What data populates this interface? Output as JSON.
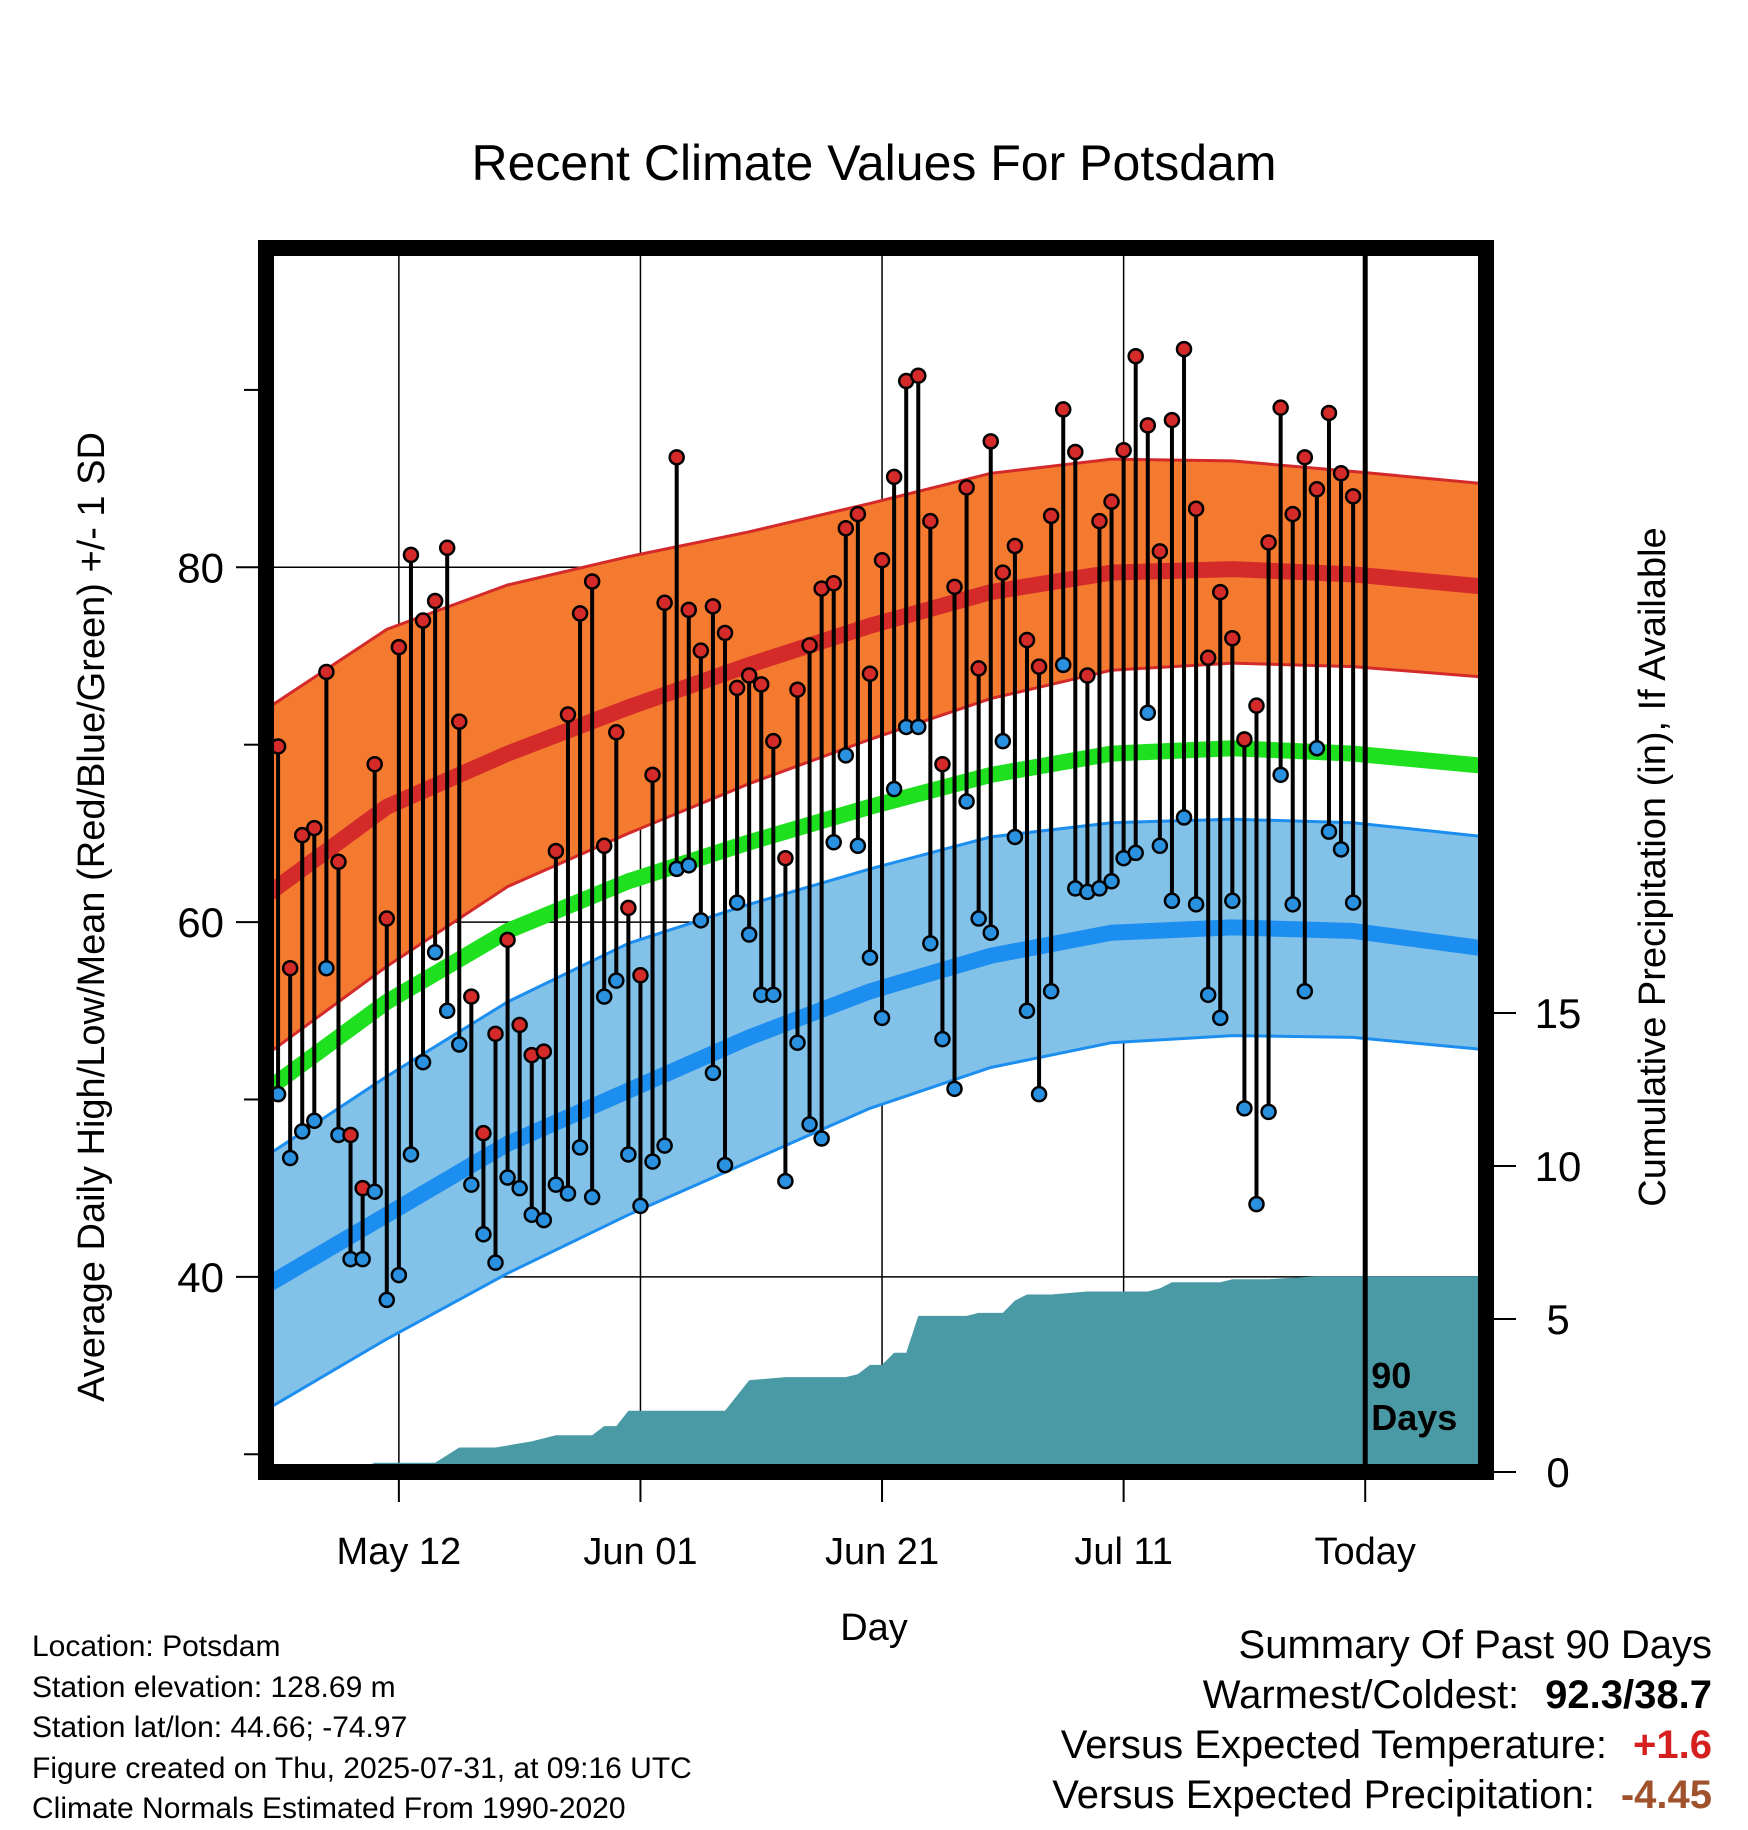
{
  "title": "Recent Climate Values For Potsdam",
  "chart_data": {
    "type": "line",
    "title": "Recent Climate Values For Potsdam",
    "xlabel": "Day",
    "ylabel_left": "Average Daily High/Low/Mean (Red/Blue/Green) +/- 1 SD",
    "ylabel_right": "Cumulative Precipitation (in), If Available",
    "ylim": [
      29,
      98
    ],
    "y_ticks": [
      40,
      60,
      80
    ],
    "precip_ylim": [
      0,
      40
    ],
    "precip_ticks": [
      0,
      5,
      10,
      15
    ],
    "x_ticks": [
      {
        "day": 11,
        "label": "May 12"
      },
      {
        "day": 31,
        "label": "Jun 01"
      },
      {
        "day": 51,
        "label": "Jun 21"
      },
      {
        "day": 71,
        "label": "Jul 11"
      },
      {
        "day": 91,
        "label": "Today"
      }
    ],
    "xlim": [
      0,
      101
    ],
    "today_label": [
      "90",
      "Days"
    ],
    "normals": {
      "day": [
        0,
        10,
        20,
        30,
        40,
        50,
        60,
        70,
        80,
        90,
        101
      ],
      "high_mean": [
        61.5,
        66.5,
        69.5,
        72.1,
        74.5,
        76.7,
        78.6,
        79.7,
        79.9,
        79.6,
        78.9
      ],
      "high_upper": [
        72.0,
        76.5,
        79.0,
        80.6,
        82.0,
        83.6,
        85.3,
        86.1,
        86.0,
        85.4,
        84.7
      ],
      "high_lower": [
        52.5,
        57.5,
        62.0,
        65.0,
        67.8,
        70.3,
        72.6,
        74.2,
        74.6,
        74.4,
        73.8
      ],
      "mean": [
        50.5,
        55.5,
        59.5,
        62.3,
        64.5,
        66.5,
        68.3,
        69.5,
        69.8,
        69.5,
        68.8
      ],
      "low_mean": [
        39.5,
        43.5,
        47.5,
        50.5,
        53.5,
        56.1,
        58.1,
        59.4,
        59.7,
        59.5,
        58.5
      ],
      "low_upper": [
        46.8,
        51.3,
        55.5,
        58.8,
        61.0,
        63.0,
        64.8,
        65.6,
        65.8,
        65.6,
        64.8
      ],
      "low_lower": [
        32.5,
        36.5,
        40.2,
        43.5,
        46.5,
        49.5,
        51.8,
        53.2,
        53.6,
        53.5,
        52.8
      ]
    },
    "daily": {
      "day": [
        1,
        2,
        3,
        4,
        5,
        6,
        7,
        8,
        9,
        10,
        11,
        12,
        13,
        14,
        15,
        16,
        17,
        18,
        19,
        20,
        21,
        22,
        23,
        24,
        25,
        26,
        27,
        28,
        29,
        30,
        31,
        32,
        33,
        34,
        35,
        36,
        37,
        38,
        39,
        40,
        41,
        42,
        43,
        44,
        45,
        46,
        47,
        48,
        49,
        50,
        51,
        52,
        53,
        54,
        55,
        56,
        57,
        58,
        59,
        60,
        61,
        62,
        63,
        64,
        65,
        66,
        67,
        68,
        69,
        70,
        71,
        72,
        73,
        74,
        75,
        76,
        77,
        78,
        79,
        80,
        81,
        82,
        83,
        84,
        85,
        86,
        87,
        88,
        89,
        90
      ],
      "high": [
        69.9,
        57.4,
        64.9,
        65.3,
        74.1,
        63.4,
        48.0,
        45.0,
        68.9,
        60.2,
        75.5,
        80.7,
        77.0,
        78.1,
        81.1,
        71.3,
        55.8,
        48.1,
        53.7,
        59.0,
        54.2,
        52.5,
        52.7,
        64.0,
        71.7,
        77.4,
        79.2,
        64.3,
        70.7,
        60.8,
        57.0,
        68.3,
        78.0,
        86.2,
        77.6,
        75.3,
        77.8,
        76.3,
        73.2,
        73.9,
        73.4,
        70.2,
        63.6,
        73.1,
        75.6,
        78.8,
        79.1,
        82.2,
        83.0,
        74.0,
        80.4,
        85.1,
        90.5,
        90.8,
        82.6,
        68.9,
        78.9,
        84.5,
        74.3,
        87.1,
        79.7,
        81.2,
        75.9,
        74.4,
        82.9,
        88.9,
        86.5,
        73.9,
        82.6,
        83.7,
        86.6,
        91.9,
        88.0,
        80.9,
        88.3,
        92.3,
        83.3,
        74.9,
        78.6,
        76.0,
        70.3,
        72.2,
        81.4,
        89.0,
        83.0,
        86.2,
        84.4,
        88.7,
        85.3,
        84.0
      ],
      "low": [
        50.3,
        46.7,
        48.2,
        48.8,
        57.4,
        48.0,
        41.0,
        41.0,
        44.8,
        38.7,
        40.1,
        46.9,
        52.1,
        58.3,
        55.0,
        53.1,
        45.2,
        42.4,
        40.8,
        45.6,
        45.0,
        43.5,
        43.2,
        45.2,
        44.7,
        47.3,
        44.5,
        55.8,
        56.7,
        46.9,
        44.0,
        46.5,
        47.4,
        63.0,
        63.2,
        60.1,
        51.5,
        46.3,
        61.1,
        59.3,
        55.9,
        55.9,
        45.4,
        53.2,
        48.6,
        47.8,
        64.5,
        69.4,
        64.3,
        58.0,
        54.6,
        67.5,
        71.0,
        71.0,
        58.8,
        53.4,
        50.6,
        66.8,
        60.2,
        59.4,
        70.2,
        64.8,
        55.0,
        50.3,
        56.1,
        74.5,
        61.9,
        61.7,
        61.9,
        62.3,
        63.6,
        63.9,
        71.8,
        64.3,
        61.2,
        65.9,
        61.0,
        55.9,
        54.6,
        61.2,
        49.5,
        44.1,
        49.3,
        68.3,
        61.0,
        56.1,
        69.8,
        65.1,
        64.1,
        61.1
      ]
    },
    "precip": {
      "day": [
        0,
        7,
        9,
        14,
        16,
        19,
        22,
        24,
        27,
        28,
        29,
        30,
        32,
        38,
        40,
        43,
        45,
        48,
        49,
        50,
        51,
        52,
        53,
        54,
        55,
        57,
        58,
        59,
        61,
        62,
        63,
        65,
        68,
        70,
        73,
        74,
        75,
        79,
        80,
        83,
        87,
        89,
        91,
        101
      ],
      "cum": [
        0.0,
        0.0,
        0.3,
        0.3,
        0.8,
        0.8,
        1.0,
        1.2,
        1.2,
        1.5,
        1.5,
        2.0,
        2.0,
        2.0,
        3.0,
        3.1,
        3.1,
        3.1,
        3.2,
        3.5,
        3.5,
        3.9,
        3.9,
        5.1,
        5.1,
        5.1,
        5.1,
        5.2,
        5.2,
        5.6,
        5.8,
        5.8,
        5.9,
        5.9,
        5.9,
        6.0,
        6.2,
        6.2,
        6.3,
        6.3,
        6.4,
        6.4,
        6.4,
        6.4
      ]
    }
  },
  "info": {
    "location": "Location: Potsdam",
    "elevation": "Station elevation: 128.69 m",
    "latlon": "Station lat/lon: 44.66; -74.97",
    "created": "Figure created on Thu, 2025-07-31, at 09:16 UTC",
    "normals": "Climate Normals Estimated From 1990-2020"
  },
  "summary": {
    "heading": "Summary Of Past 90 Days",
    "warm_cold_label": "Warmest/Coldest:",
    "warm_cold_value": "92.3/38.7",
    "temp_label": "Versus Expected Temperature:",
    "temp_value": "+1.6",
    "precip_label": "Versus Expected Precipitation:",
    "precip_value": "-4.45"
  },
  "colors": {
    "high_band": "#f47a30",
    "high_line": "#d42a2a",
    "mean_line": "#1fe01f",
    "low_band": "#82c1e8",
    "low_line": "#1c8ef0",
    "precip_fill": "#4a9aa5",
    "high_marker": "#d42a2a",
    "low_marker": "#2a90e0"
  }
}
